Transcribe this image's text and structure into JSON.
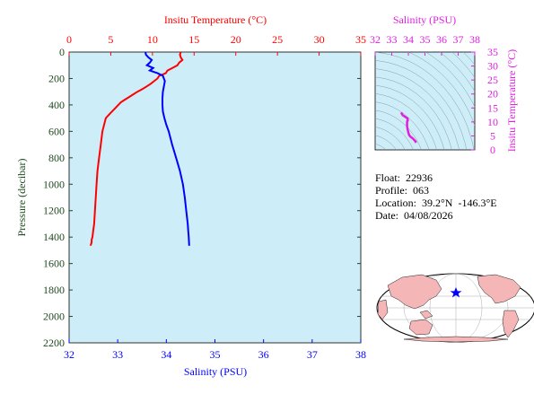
{
  "main_plot": {
    "top_axis_title": "Insitu Temperature (°C)",
    "bottom_axis_title": "Salinity (PSU)",
    "left_axis_title": "Pressure (decibar)",
    "temperature_ticks": [
      "0",
      "5",
      "10",
      "15",
      "20",
      "25",
      "30",
      "35"
    ],
    "salinity_ticks": [
      "32",
      "33",
      "34",
      "35",
      "36",
      "37",
      "38"
    ],
    "pressure_ticks": [
      "0",
      "200",
      "400",
      "600",
      "800",
      "1000",
      "1200",
      "1400",
      "1600",
      "1800",
      "2000",
      "2200"
    ]
  },
  "ts_plot": {
    "top_axis_title": "Salinity (PSU)",
    "right_axis_title": "Insitu Temperature (°C)",
    "salinity_ticks": [
      "32",
      "33",
      "34",
      "35",
      "36",
      "37",
      "38"
    ],
    "temperature_ticks": [
      "0",
      "5",
      "10",
      "15",
      "20",
      "25",
      "30",
      "35"
    ]
  },
  "info": {
    "float_line": "Float:  22936",
    "profile_line": "Profile:  063",
    "location_line": "Location:  39.2°N  -146.3°E",
    "date_line": "Date:  04/08/2026"
  },
  "colors": {
    "temperature": "#ff0000",
    "salinity": "#0000ff",
    "ts_curve": "#e020e0",
    "plot_bg": "#cdeef8",
    "pressure_axis": "#1f4a1f",
    "land": "#f4b6b6",
    "ocean": "#ffffff"
  },
  "chart_data": [
    {
      "type": "line",
      "title": "",
      "xlabel": "Insitu Temperature (°C)",
      "ylabel": "Pressure (decibar)",
      "xlim": [
        0,
        35
      ],
      "ylim": [
        2200,
        0
      ],
      "series": [
        {
          "name": "Insitu Temperature (°C)",
          "color": "#ff0000",
          "x": [
            13.4,
            13.3,
            13.4,
            13.6,
            13.2,
            13.0,
            12.4,
            11.8,
            11.6,
            10.8,
            10.6,
            10.2,
            9.8,
            9.3,
            8.8,
            8.2,
            7.7,
            7.2,
            6.7,
            6.2,
            5.9,
            5.6,
            5.3,
            5.0,
            4.7,
            4.4,
            4.2,
            4.0,
            3.8,
            3.6,
            3.4,
            3.3,
            3.2,
            3.1,
            3.0,
            2.9,
            2.8,
            2.7,
            2.7,
            2.6,
            2.6
          ],
          "y": [
            0,
            20,
            40,
            60,
            80,
            100,
            120,
            140,
            160,
            180,
            200,
            220,
            240,
            260,
            280,
            300,
            320,
            340,
            360,
            380,
            400,
            420,
            440,
            460,
            480,
            500,
            550,
            600,
            700,
            800,
            900,
            1000,
            1100,
            1200,
            1300,
            1350,
            1400,
            1420,
            1440,
            1460,
            1465
          ]
        },
        {
          "name": "Salinity (PSU)",
          "color": "#0000ff",
          "x": [
            33.57,
            33.58,
            33.63,
            33.7,
            33.66,
            33.6,
            33.73,
            33.66,
            33.82,
            33.93,
            33.95,
            33.97,
            33.95,
            33.93,
            33.92,
            33.92,
            33.93,
            33.96,
            34.0,
            34.05,
            34.12,
            34.2,
            34.28,
            34.34,
            34.38,
            34.41,
            34.44,
            34.45,
            34.46,
            34.47
          ],
          "y": [
            0,
            20,
            40,
            60,
            80,
            100,
            120,
            140,
            160,
            180,
            200,
            220,
            260,
            300,
            350,
            400,
            450,
            500,
            550,
            600,
            700,
            800,
            900,
            1000,
            1100,
            1200,
            1300,
            1350,
            1400,
            1465
          ]
        }
      ]
    },
    {
      "type": "line",
      "title": "",
      "xlabel": "Salinity (PSU)",
      "ylabel": "Insitu Temperature (°C)",
      "xlim": [
        32,
        38
      ],
      "ylim": [
        0,
        35
      ],
      "series": [
        {
          "name": "",
          "color": "#e020e0",
          "x": [
            34.47,
            34.45,
            34.41,
            34.34,
            34.28,
            34.2,
            34.12,
            34.05,
            34.0,
            33.96,
            33.93,
            33.92,
            33.93,
            33.97,
            33.95,
            33.82,
            33.66,
            33.6,
            33.57
          ],
          "y": [
            2.6,
            2.8,
            3.2,
            3.6,
            4.0,
            4.4,
            4.8,
            5.3,
            6.2,
            7.2,
            8.2,
            9.3,
            10.2,
            10.6,
            11.2,
            11.8,
            12.4,
            13.0,
            13.4
          ]
        }
      ]
    }
  ]
}
